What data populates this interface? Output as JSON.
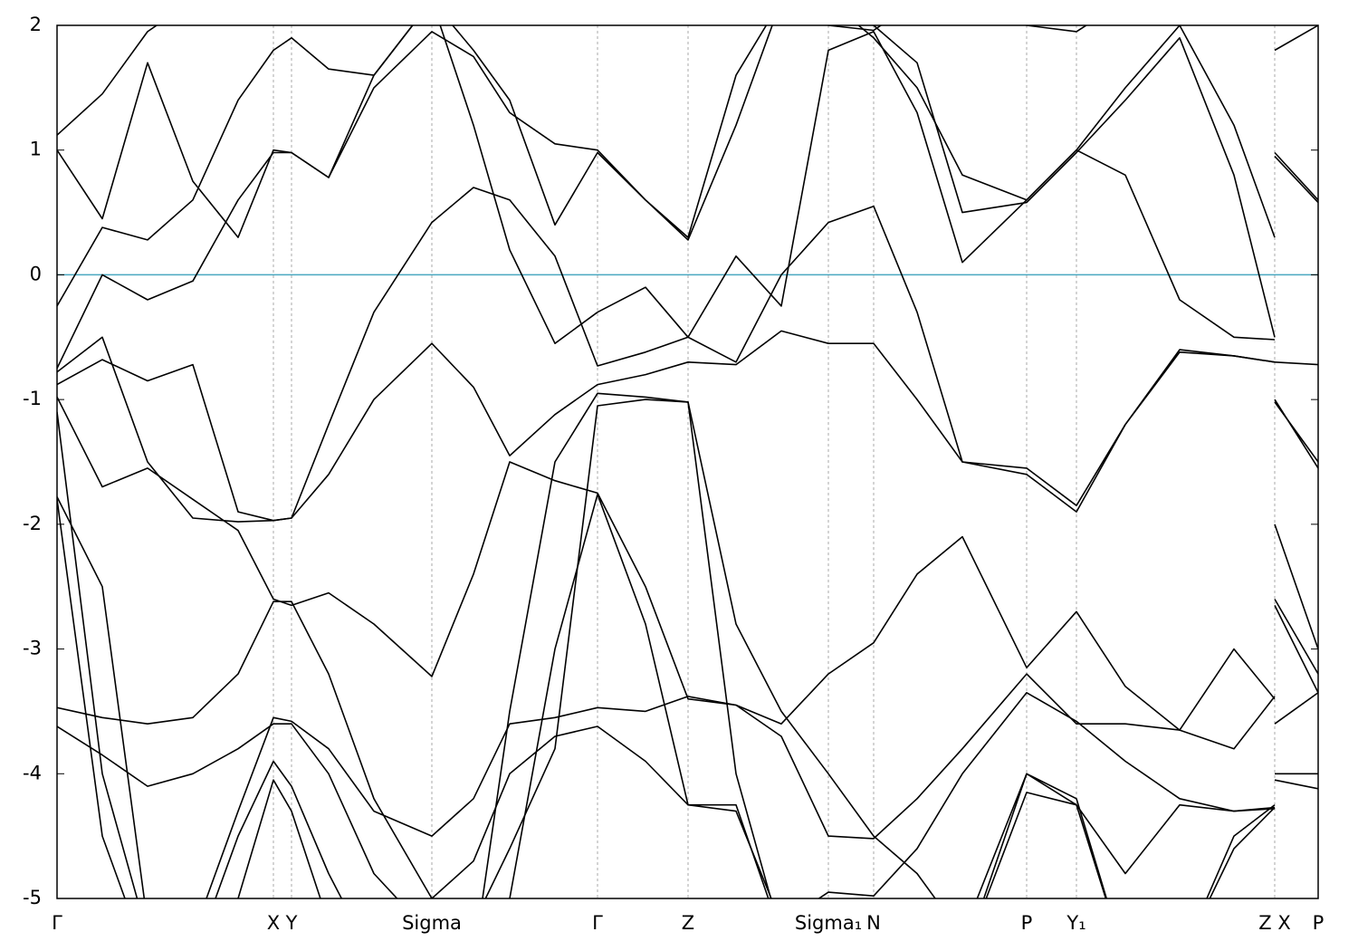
{
  "chart_data": {
    "type": "line",
    "color": "#000000",
    "xlim": [
      0,
      13.93
    ],
    "ylim": [
      -5,
      2
    ],
    "yticks": [
      -5,
      -4,
      -3,
      -2,
      -1,
      0,
      1,
      2
    ],
    "xticks": [
      {
        "value": 0,
        "label": "Γ"
      },
      {
        "value": 2.39,
        "label": "X"
      },
      {
        "value": 2.59,
        "label": "Y"
      },
      {
        "value": 4.14,
        "label": "Sigma"
      },
      {
        "value": 5.97,
        "label": "Γ"
      },
      {
        "value": 6.97,
        "label": "Z"
      },
      {
        "value": 8.52,
        "label": "Sigma₁"
      },
      {
        "value": 9.02,
        "label": "N"
      },
      {
        "value": 10.71,
        "label": "P"
      },
      {
        "value": 11.26,
        "label": "Y₁"
      },
      {
        "value": 13.45,
        "label": "Z  X"
      },
      {
        "value": 13.93,
        "label": "P"
      }
    ],
    "x_grid": true,
    "grid_color": "#aaaaaa",
    "hline": {
      "value": 0,
      "color": "#4aa8c0"
    },
    "x": [
      0,
      0.5,
      1.0,
      1.5,
      2.0,
      2.39,
      2.59,
      3.0,
      3.5,
      4.14,
      4.6,
      5.0,
      5.5,
      5.97,
      6.5,
      6.97,
      7.5,
      8.0,
      8.52,
      9.02,
      9.5,
      10.0,
      10.71,
      11.26,
      11.8,
      12.4,
      13.0,
      13.45,
      13.45,
      13.45,
      13.93
    ],
    "series": [
      {
        "values": [
          1.12,
          1.45,
          1.95,
          2.2,
          2.2,
          2.2,
          2.2,
          2.2,
          2.2,
          2.2,
          2.2,
          2.2,
          2.2,
          2.2,
          2.2,
          2.2,
          2.2,
          2.2,
          2.0,
          1.96,
          2.2,
          2.2,
          2.0,
          1.95,
          2.2,
          2.2,
          2.2,
          2.2,
          null,
          1.8,
          2.0
        ]
      },
      {
        "values": [
          1.0,
          0.45,
          1.7,
          0.75,
          0.3,
          1.0,
          0.98,
          0.78,
          1.5,
          1.95,
          1.75,
          1.3,
          1.05,
          1.0,
          0.6,
          0.3,
          1.6,
          2.2,
          2.2,
          1.9,
          1.5,
          0.8,
          0.6,
          1.0,
          1.5,
          2.0,
          1.2,
          0.3,
          null,
          0.98,
          0.6
        ]
      },
      {
        "values": [
          -0.25,
          0.38,
          0.28,
          0.6,
          1.4,
          1.8,
          1.9,
          1.65,
          1.6,
          2.2,
          1.8,
          1.4,
          0.4,
          0.98,
          0.6,
          0.28,
          1.2,
          2.2,
          2.2,
          2.0,
          1.7,
          0.5,
          0.58,
          0.98,
          1.4,
          1.9,
          0.8,
          -0.5,
          null,
          0.95,
          0.58
        ]
      },
      {
        "values": [
          -0.75,
          0.0,
          -0.2,
          -0.05,
          0.6,
          0.98,
          0.98,
          0.78,
          1.6,
          2.2,
          1.2,
          0.2,
          -0.55,
          -0.3,
          -0.1,
          -0.5,
          0.15,
          -0.25,
          1.8,
          1.95,
          1.3,
          0.1,
          0.6,
          1.0,
          0.8,
          -0.2,
          -0.5,
          -0.52,
          null,
          -0.7,
          -0.72
        ]
      },
      {
        "values": [
          -0.78,
          -0.5,
          -1.5,
          -1.95,
          -1.98,
          -1.97,
          -1.95,
          -1.2,
          -0.3,
          0.42,
          0.7,
          0.6,
          0.15,
          -0.73,
          -0.62,
          -0.5,
          -0.7,
          0.0,
          0.42,
          0.55,
          -0.3,
          -1.5,
          -1.55,
          -1.85,
          -1.2,
          -0.6,
          -0.65,
          -0.7,
          null,
          -1.0,
          -1.55
        ]
      },
      {
        "values": [
          -0.88,
          -0.68,
          -0.85,
          -0.72,
          -1.9,
          -1.97,
          -1.95,
          -1.6,
          -1.0,
          -0.55,
          -0.9,
          -1.45,
          -1.12,
          -0.88,
          -0.8,
          -0.7,
          -0.72,
          -0.45,
          -0.55,
          -0.55,
          -1.0,
          -1.5,
          -1.6,
          -1.9,
          -1.2,
          -0.62,
          -0.65,
          -0.7,
          null,
          -1.02,
          -1.5
        ]
      },
      {
        "values": [
          -0.98,
          -1.7,
          -1.55,
          -1.8,
          -2.05,
          -2.6,
          -2.65,
          -2.55,
          -2.8,
          -3.22,
          -2.4,
          -1.5,
          -1.65,
          -1.75,
          -2.5,
          -3.4,
          -3.45,
          -3.6,
          -3.2,
          -2.95,
          -2.4,
          -2.1,
          -3.15,
          -2.7,
          -3.3,
          -3.65,
          -3.0,
          -3.4,
          null,
          -2.0,
          -3.0
        ]
      },
      {
        "values": [
          -1.78,
          -2.5,
          -5.2,
          -5.3,
          -4.3,
          -3.55,
          -3.58,
          -3.8,
          -4.3,
          -4.5,
          -4.2,
          -3.6,
          -3.55,
          -3.47,
          -3.5,
          -3.38,
          -3.45,
          -3.7,
          -4.5,
          -4.52,
          -4.2,
          -3.8,
          -3.2,
          -3.6,
          -3.6,
          -3.65,
          -3.8,
          -3.38,
          null,
          -2.6,
          -3.2
        ]
      },
      {
        "values": [
          -3.47,
          -3.55,
          -3.6,
          -3.55,
          -3.2,
          -2.62,
          -2.62,
          -3.2,
          -4.2,
          -5.0,
          -4.7,
          -4.0,
          -3.7,
          -3.62,
          -3.9,
          -4.25,
          -4.3,
          -5.2,
          -4.95,
          -4.98,
          -4.6,
          -4.0,
          -3.35,
          -3.58,
          -3.9,
          -4.2,
          -4.3,
          -4.27,
          null,
          -2.65,
          -3.35
        ]
      },
      {
        "values": [
          -3.62,
          -3.85,
          -4.1,
          -4.0,
          -3.8,
          -3.6,
          -3.6,
          -4.0,
          -4.8,
          -5.3,
          -5.2,
          -4.6,
          -3.8,
          -1.05,
          -1.0,
          -1.02,
          -2.8,
          -3.5,
          -4.0,
          -4.5,
          -4.8,
          -5.3,
          -4.0,
          -4.25,
          -4.8,
          -4.25,
          -4.3,
          -4.28,
          null,
          -3.6,
          -3.35
        ]
      },
      {
        "values": [
          -1.1,
          -4.0,
          -5.3,
          -5.5,
          -4.5,
          -3.9,
          -4.1,
          -4.8,
          -5.5,
          -5.5,
          -5.5,
          -3.5,
          -1.5,
          -0.95,
          -0.98,
          -1.02,
          -4.0,
          -5.3,
          -5.5,
          -5.5,
          -5.5,
          -5.5,
          -4.0,
          -4.2,
          -5.5,
          -5.5,
          -4.5,
          -4.25,
          null,
          -4.05,
          -4.12
        ]
      },
      {
        "values": [
          -1.8,
          -4.5,
          -5.5,
          -5.5,
          -5.0,
          -4.05,
          -4.3,
          -5.2,
          -5.5,
          -5.5,
          -5.5,
          -5.0,
          -3.0,
          -1.76,
          -2.8,
          -4.25,
          -4.25,
          -5.3,
          -5.5,
          -5.5,
          -5.5,
          -5.5,
          -4.15,
          -4.25,
          -5.5,
          -5.5,
          -4.6,
          -4.27,
          null,
          -4.0,
          -4.0
        ]
      }
    ]
  }
}
